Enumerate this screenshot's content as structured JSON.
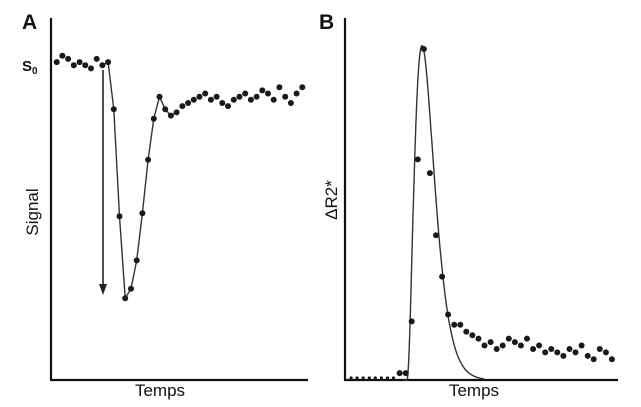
{
  "chart_data": [
    {
      "type": "scatter",
      "panel": "A",
      "xlabel": "Temps",
      "ylabel": "Signal",
      "y_marker": "S0",
      "x_ticks": false,
      "y_ticks": false,
      "grid": false,
      "annotation": "downward arrow indicating bolus arrival",
      "xlim": [
        0,
        45
      ],
      "ylim": [
        0,
        1.15
      ],
      "series": [
        {
          "x": [
            1,
            2,
            3,
            4,
            5,
            6,
            7,
            8,
            9,
            10,
            11,
            12,
            13,
            14,
            15,
            16,
            17,
            18,
            19,
            20,
            21,
            22,
            23,
            24,
            25,
            26,
            27,
            28,
            29,
            30,
            31,
            32,
            33,
            34,
            35,
            36,
            37,
            38,
            39,
            40,
            41,
            42,
            43,
            44
          ],
          "y": [
            1.01,
            1.03,
            1.02,
            1.0,
            1.01,
            1.0,
            0.99,
            1.02,
            1.0,
            1.01,
            0.86,
            0.52,
            0.26,
            0.29,
            0.38,
            0.53,
            0.7,
            0.83,
            0.9,
            0.86,
            0.84,
            0.85,
            0.87,
            0.88,
            0.89,
            0.9,
            0.91,
            0.89,
            0.9,
            0.88,
            0.87,
            0.89,
            0.9,
            0.91,
            0.89,
            0.9,
            0.92,
            0.91,
            0.89,
            0.93,
            0.9,
            0.88,
            0.91,
            0.93
          ]
        }
      ]
    },
    {
      "type": "scatter",
      "panel": "B",
      "xlabel": "Temps",
      "ylabel": "ΔR2*",
      "x_ticks": false,
      "y_ticks": false,
      "grid": false,
      "xlim": [
        0,
        45
      ],
      "ylim": [
        0,
        1.05
      ],
      "series": [
        {
          "x": [
            1,
            2,
            3,
            4,
            5,
            6,
            7,
            8,
            9,
            10,
            11,
            12,
            13,
            14,
            15,
            16,
            17,
            18,
            19,
            20,
            21,
            22,
            23,
            24,
            25,
            26,
            27,
            28,
            29,
            30,
            31,
            32,
            33,
            34,
            35,
            36,
            37,
            38,
            39,
            40,
            41,
            42,
            43,
            44
          ],
          "y": [
            0,
            0,
            0,
            0,
            0,
            0,
            0,
            0,
            0.02,
            0.02,
            0.17,
            0.64,
            0.96,
            0.6,
            0.42,
            0.3,
            0.19,
            0.16,
            0.16,
            0.14,
            0.13,
            0.12,
            0.1,
            0.11,
            0.09,
            0.1,
            0.12,
            0.11,
            0.1,
            0.12,
            0.09,
            0.1,
            0.08,
            0.09,
            0.08,
            0.07,
            0.09,
            0.08,
            0.1,
            0.07,
            0.06,
            0.09,
            0.08,
            0.06
          ]
        }
      ]
    }
  ]
}
